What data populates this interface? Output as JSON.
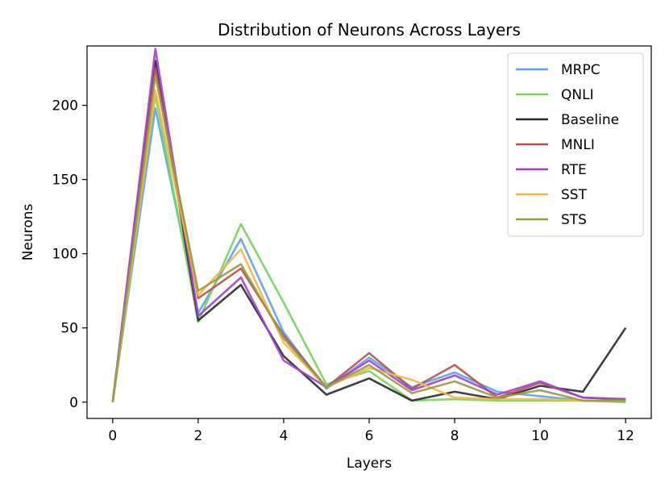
{
  "chart_data": {
    "type": "line",
    "title": "Distribution of Neurons Across Layers",
    "xlabel": "Layers",
    "ylabel": "Neurons",
    "x": [
      0,
      1,
      2,
      3,
      4,
      5,
      6,
      7,
      8,
      9,
      10,
      11,
      12
    ],
    "xlim": [
      -0.6,
      12.6
    ],
    "ylim": [
      -11,
      240
    ],
    "xticks": [
      0,
      2,
      4,
      6,
      8,
      10,
      12
    ],
    "yticks": [
      0,
      50,
      100,
      150,
      200
    ],
    "grid": false,
    "legend_position": "top-right",
    "series": [
      {
        "name": "MRPC",
        "color": "#5aa3f0",
        "values": [
          0,
          198,
          60,
          110,
          47,
          9,
          30,
          10,
          20,
          7,
          4,
          1,
          1
        ]
      },
      {
        "name": "QNLI",
        "color": "#72d65a",
        "values": [
          0,
          207,
          54,
          120,
          67,
          12,
          21,
          1,
          2,
          1,
          1,
          1,
          0
        ]
      },
      {
        "name": "Baseline",
        "color": "#2b2b2b",
        "values": [
          0,
          230,
          55,
          79,
          31,
          5,
          16,
          1,
          7,
          2,
          11,
          7,
          50
        ]
      },
      {
        "name": "MNLI",
        "color": "#b5524a",
        "values": [
          0,
          225,
          70,
          90,
          45,
          10,
          33,
          9,
          25,
          3,
          13,
          3,
          2
        ]
      },
      {
        "name": "RTE",
        "color": "#a23fd6",
        "values": [
          0,
          238,
          58,
          84,
          28,
          10,
          28,
          8,
          18,
          5,
          14,
          3,
          2
        ]
      },
      {
        "name": "SST",
        "color": "#f5b642",
        "values": [
          0,
          210,
          72,
          103,
          40,
          10,
          23,
          15,
          3,
          2,
          2,
          1,
          1
        ]
      },
      {
        "name": "STS",
        "color": "#9a9a40",
        "values": [
          0,
          220,
          75,
          93,
          43,
          10,
          25,
          6,
          14,
          3,
          8,
          1,
          1
        ]
      }
    ]
  }
}
